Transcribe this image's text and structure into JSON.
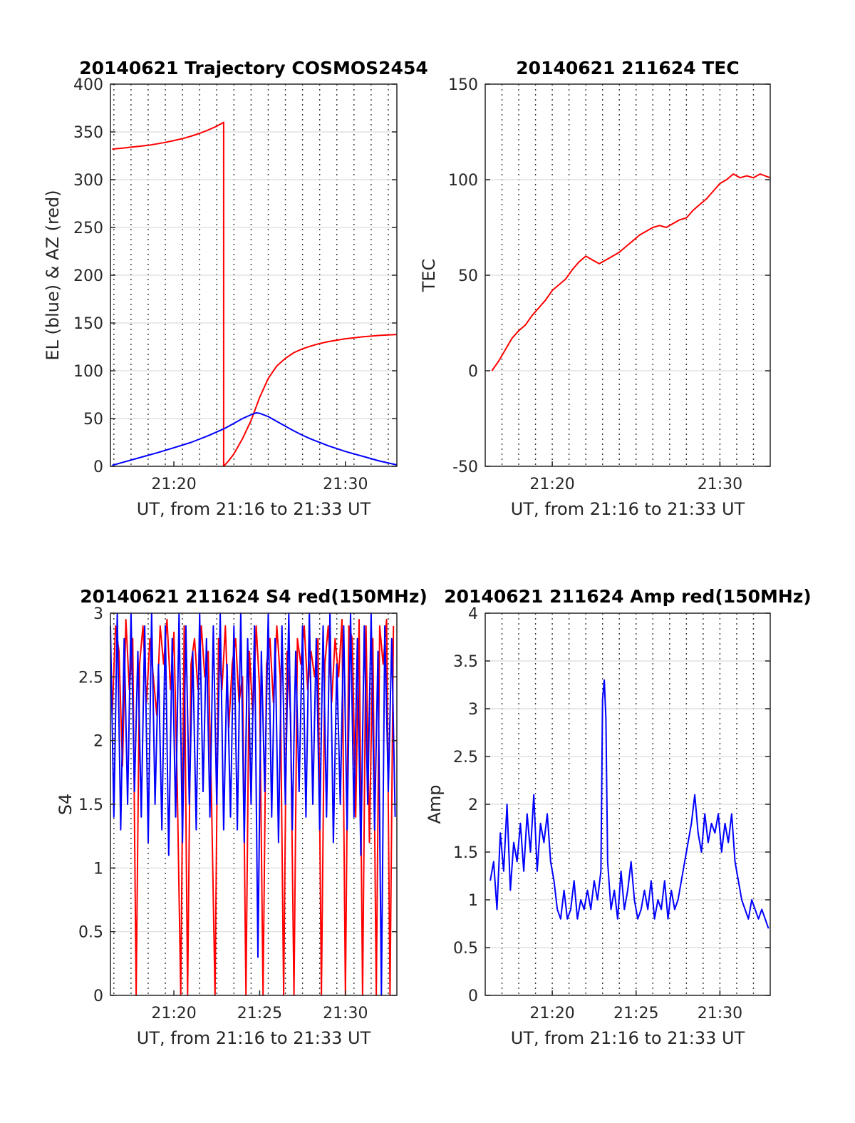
{
  "chart_data": [
    {
      "type": "line",
      "title": "20140621 Trajectory COSMOS2454",
      "xlabel": "UT, from 21:16 to 21:33 UT",
      "ylabel": "EL (blue) & AZ (red)",
      "xlim_minutes": [
        16.3,
        33.0
      ],
      "xticks": [
        {
          "value": 20,
          "label": "21:20"
        },
        {
          "value": 30,
          "label": "21:30"
        }
      ],
      "ylim": [
        0,
        400
      ],
      "yticks": [
        0,
        50,
        100,
        150,
        200,
        250,
        300,
        350,
        400
      ],
      "grid": true,
      "series": [
        {
          "color": "#ff0000",
          "x": [
            16.4,
            17.0,
            17.5,
            18.0,
            18.5,
            19.0,
            19.5,
            20.0,
            20.5,
            21.0,
            21.5,
            22.0,
            22.5,
            22.9,
            22.9,
            23.2,
            23.5,
            24.0,
            24.5,
            25.0,
            25.5,
            26.0,
            26.5,
            27.0,
            27.5,
            28.0,
            28.5,
            29.0,
            30.0,
            31.0,
            32.0,
            33.0
          ],
          "values": [
            332,
            333,
            334,
            335,
            336,
            337.5,
            339,
            341,
            343,
            345.5,
            348.5,
            352,
            356,
            360,
            0,
            6,
            13,
            29,
            48,
            72,
            92,
            105,
            113,
            119,
            123,
            126,
            128.5,
            130.5,
            133.5,
            135.5,
            137,
            138
          ]
        },
        {
          "color": "#0000ff",
          "x": [
            16.4,
            17.0,
            18.0,
            19.0,
            20.0,
            21.0,
            22.0,
            22.5,
            23.0,
            23.5,
            24.0,
            24.5,
            24.8,
            25.0,
            25.5,
            26.0,
            26.5,
            27.0,
            27.5,
            28.0,
            29.0,
            30.0,
            31.0,
            32.0,
            33.0
          ],
          "values": [
            1,
            4,
            9,
            14,
            19.5,
            25,
            32,
            36,
            40,
            45,
            50,
            54,
            56,
            55.5,
            52,
            47,
            42,
            37,
            32.5,
            28.5,
            21.5,
            15.5,
            10.5,
            5.5,
            1.5
          ]
        }
      ]
    },
    {
      "type": "line",
      "title": "20140621 211624 TEC",
      "xlabel": "UT, from 21:16 to 21:33 UT",
      "ylabel": "TEC",
      "xlim_minutes": [
        16.0,
        33.0
      ],
      "xticks": [
        {
          "value": 20,
          "label": "21:20"
        },
        {
          "value": 30,
          "label": "21:30"
        }
      ],
      "ylim": [
        -50,
        150
      ],
      "yticks": [
        -50,
        0,
        50,
        100,
        150
      ],
      "grid": true,
      "series": [
        {
          "color": "#ff0000",
          "x": [
            16.4,
            16.8,
            17.2,
            17.6,
            18.0,
            18.4,
            18.8,
            19.2,
            19.6,
            20.0,
            20.4,
            20.8,
            21.2,
            21.6,
            22.0,
            22.4,
            22.8,
            23.2,
            23.6,
            24.0,
            24.4,
            24.8,
            25.2,
            25.6,
            26.0,
            26.4,
            26.8,
            27.2,
            27.6,
            28.0,
            28.4,
            28.8,
            29.2,
            29.6,
            30.0,
            30.4,
            30.8,
            31.2,
            31.6,
            32.0,
            32.4,
            33.0
          ],
          "values": [
            0,
            5,
            11,
            17,
            21,
            24,
            29,
            33,
            37,
            42,
            45,
            48,
            53,
            57,
            60,
            58,
            56,
            58,
            60,
            62,
            65,
            68,
            71,
            73,
            75,
            76,
            75,
            77,
            79,
            80,
            84,
            87,
            90,
            94,
            98,
            100,
            103,
            101,
            102,
            101,
            103,
            101
          ]
        }
      ]
    },
    {
      "type": "line",
      "title": "20140621 211624 S4 red(150MHz)",
      "xlabel": "UT, from 21:16 to 21:33 UT",
      "ylabel": "S4",
      "xlim_minutes": [
        16.3,
        33.0
      ],
      "xticks": [
        {
          "value": 20,
          "label": "21:20"
        },
        {
          "value": 25,
          "label": "21:25"
        },
        {
          "value": 30,
          "label": "21:30"
        }
      ],
      "ylim": [
        0,
        3
      ],
      "yticks": [
        0,
        0.5,
        1,
        1.5,
        2,
        2.5,
        3
      ],
      "grid": true,
      "series": [
        {
          "color": "#ff0000",
          "x": [
            16.4,
            16.6,
            16.8,
            17.0,
            17.2,
            17.4,
            17.6,
            17.8,
            18.0,
            18.2,
            18.4,
            18.6,
            18.8,
            19.0,
            19.2,
            19.4,
            19.6,
            19.8,
            20.0,
            20.2,
            20.4,
            20.6,
            20.8,
            21.0,
            21.2,
            21.4,
            21.6,
            21.8,
            22.0,
            22.2,
            22.4,
            22.6,
            22.8,
            23.0,
            23.2,
            23.4,
            23.6,
            23.8,
            24.0,
            24.2,
            24.4,
            24.6,
            24.8,
            25.0,
            25.2,
            25.4,
            25.6,
            25.8,
            26.0,
            26.2,
            26.4,
            26.6,
            26.8,
            27.0,
            27.2,
            27.4,
            27.6,
            27.8,
            28.0,
            28.2,
            28.4,
            28.6,
            28.8,
            29.0,
            29.2,
            29.4,
            29.6,
            29.8,
            30.0,
            30.2,
            30.4,
            30.6,
            30.8,
            31.0,
            31.2,
            31.4,
            31.6,
            31.8,
            32.0,
            32.2,
            32.4,
            32.6,
            32.8
          ],
          "values": [
            2.2,
            2.9,
            2.7,
            1.8,
            2.95,
            2.4,
            2.8,
            0,
            2.6,
            2.9,
            2.3,
            2.8,
            2.5,
            2.2,
            2.9,
            2.6,
            2.95,
            2.4,
            2.85,
            1.6,
            0,
            2.9,
            0,
            2.6,
            2.8,
            2.4,
            2.9,
            2.5,
            2.7,
            1.5,
            0,
            2.8,
            2.4,
            2.9,
            2.1,
            2.6,
            2.8,
            2.3,
            2.5,
            0,
            2.7,
            2.2,
            2.9,
            2.4,
            0,
            2.6,
            2.8,
            2.3,
            2.9,
            2.5,
            0,
            2.7,
            2.2,
            0,
            2.8,
            2.6,
            2.9,
            2.4,
            2.7,
            2.5,
            2.8,
            0,
            2.6,
            2.9,
            2.3,
            2.8,
            2.5,
            2.95,
            0,
            2.9,
            2.8,
            1.4,
            2.95,
            0,
            2.9,
            1.2,
            2.8,
            0,
            2.9,
            2.6,
            2.95,
            0,
            2.9
          ]
        },
        {
          "color": "#0000ff",
          "x": [
            16.3,
            16.5,
            16.7,
            16.9,
            17.1,
            17.3,
            17.5,
            17.7,
            17.9,
            18.1,
            18.3,
            18.5,
            18.7,
            18.9,
            19.1,
            19.3,
            19.5,
            19.7,
            19.9,
            20.1,
            20.3,
            20.5,
            20.7,
            20.9,
            21.1,
            21.3,
            21.5,
            21.7,
            21.9,
            22.1,
            22.3,
            22.5,
            22.7,
            22.9,
            23.1,
            23.3,
            23.5,
            23.7,
            23.9,
            24.1,
            24.3,
            24.5,
            24.7,
            24.9,
            25.1,
            25.3,
            25.5,
            25.7,
            25.9,
            26.1,
            26.3,
            26.5,
            26.7,
            26.9,
            27.1,
            27.3,
            27.5,
            27.7,
            27.9,
            28.1,
            28.3,
            28.5,
            28.7,
            28.9,
            29.1,
            29.3,
            29.5,
            29.7,
            29.9,
            30.1,
            30.3,
            30.5,
            30.7,
            30.9,
            31.1,
            31.3,
            31.5,
            31.7,
            31.9,
            32.1,
            32.3,
            32.5,
            32.7,
            32.9
          ],
          "values": [
            2.9,
            1.4,
            3.0,
            1.3,
            2.8,
            1.5,
            3.0,
            1.6,
            2.7,
            1.4,
            2.9,
            1.2,
            3.0,
            1.5,
            2.6,
            1.3,
            2.9,
            1.1,
            2.8,
            1.4,
            3.0,
            1.2,
            2.9,
            1.5,
            2.7,
            1.3,
            3.0,
            1.6,
            2.8,
            1.4,
            2.9,
            1.5,
            3.0,
            1.3,
            2.6,
            1.4,
            2.9,
            1.3,
            3.0,
            1.2,
            2.8,
            1.5,
            2.9,
            0.3,
            2.7,
            1.6,
            3.0,
            1.4,
            2.8,
            1.2,
            2.9,
            1.5,
            3.0,
            1.3,
            2.7,
            1.6,
            2.9,
            1.4,
            3.0,
            1.5,
            2.8,
            1.3,
            2.9,
            1.4,
            3.0,
            1.2,
            2.6,
            1.5,
            2.9,
            1.3,
            3.0,
            1.4,
            2.8,
            1.1,
            2.9,
            1.5,
            3.0,
            1.3,
            2.7,
            0,
            2.9,
            1.6,
            2.8,
            1.4
          ]
        }
      ]
    },
    {
      "type": "line",
      "title": "20140621 211624 Amp red(150MHz)",
      "xlabel": "UT, from 21:16 to 21:33 UT",
      "ylabel": "Amp",
      "xlim_minutes": [
        16.0,
        33.0
      ],
      "xticks": [
        {
          "value": 20,
          "label": "21:20"
        },
        {
          "value": 25,
          "label": "21:25"
        },
        {
          "value": 30,
          "label": "21:30"
        }
      ],
      "ylim": [
        0,
        4
      ],
      "yticks": [
        0,
        0.5,
        1,
        1.5,
        2,
        2.5,
        3,
        3.5,
        4
      ],
      "grid": true,
      "series": [
        {
          "color": "#0000ff",
          "x": [
            16.3,
            16.5,
            16.7,
            16.9,
            17.1,
            17.3,
            17.5,
            17.7,
            17.9,
            18.1,
            18.3,
            18.5,
            18.7,
            18.9,
            19.1,
            19.3,
            19.5,
            19.7,
            19.9,
            20.1,
            20.3,
            20.5,
            20.7,
            20.9,
            21.1,
            21.3,
            21.5,
            21.7,
            21.9,
            22.1,
            22.3,
            22.5,
            22.7,
            22.9,
            23.0,
            23.1,
            23.2,
            23.3,
            23.5,
            23.7,
            23.9,
            24.1,
            24.3,
            24.5,
            24.7,
            24.9,
            25.1,
            25.3,
            25.5,
            25.7,
            25.9,
            26.1,
            26.3,
            26.5,
            26.7,
            26.9,
            27.1,
            27.3,
            27.5,
            27.7,
            27.9,
            28.1,
            28.3,
            28.5,
            28.7,
            28.9,
            29.1,
            29.3,
            29.5,
            29.7,
            29.9,
            30.1,
            30.3,
            30.5,
            30.7,
            30.9,
            31.1,
            31.3,
            31.5,
            31.7,
            31.9,
            32.1,
            32.3,
            32.5,
            32.7,
            32.9
          ],
          "values": [
            1.2,
            1.4,
            0.9,
            1.7,
            1.3,
            2.0,
            1.1,
            1.6,
            1.4,
            1.8,
            1.3,
            1.9,
            1.5,
            2.1,
            1.3,
            1.8,
            1.6,
            1.9,
            1.4,
            1.2,
            0.9,
            0.8,
            1.1,
            0.8,
            0.9,
            1.2,
            0.8,
            1.0,
            0.9,
            1.1,
            0.9,
            1.2,
            1.0,
            1.3,
            3.1,
            3.3,
            2.9,
            1.4,
            0.9,
            1.1,
            0.8,
            1.3,
            0.9,
            1.1,
            1.4,
            1.0,
            0.8,
            0.9,
            1.1,
            0.9,
            1.2,
            0.8,
            1.0,
            0.9,
            1.2,
            0.8,
            1.1,
            0.9,
            1.0,
            1.2,
            1.4,
            1.6,
            1.8,
            2.1,
            1.7,
            1.5,
            1.9,
            1.6,
            1.8,
            1.7,
            1.9,
            1.5,
            1.8,
            1.6,
            1.9,
            1.4,
            1.2,
            1.0,
            0.9,
            0.8,
            1.0,
            0.9,
            0.8,
            0.9,
            0.8,
            0.7
          ]
        }
      ]
    }
  ]
}
